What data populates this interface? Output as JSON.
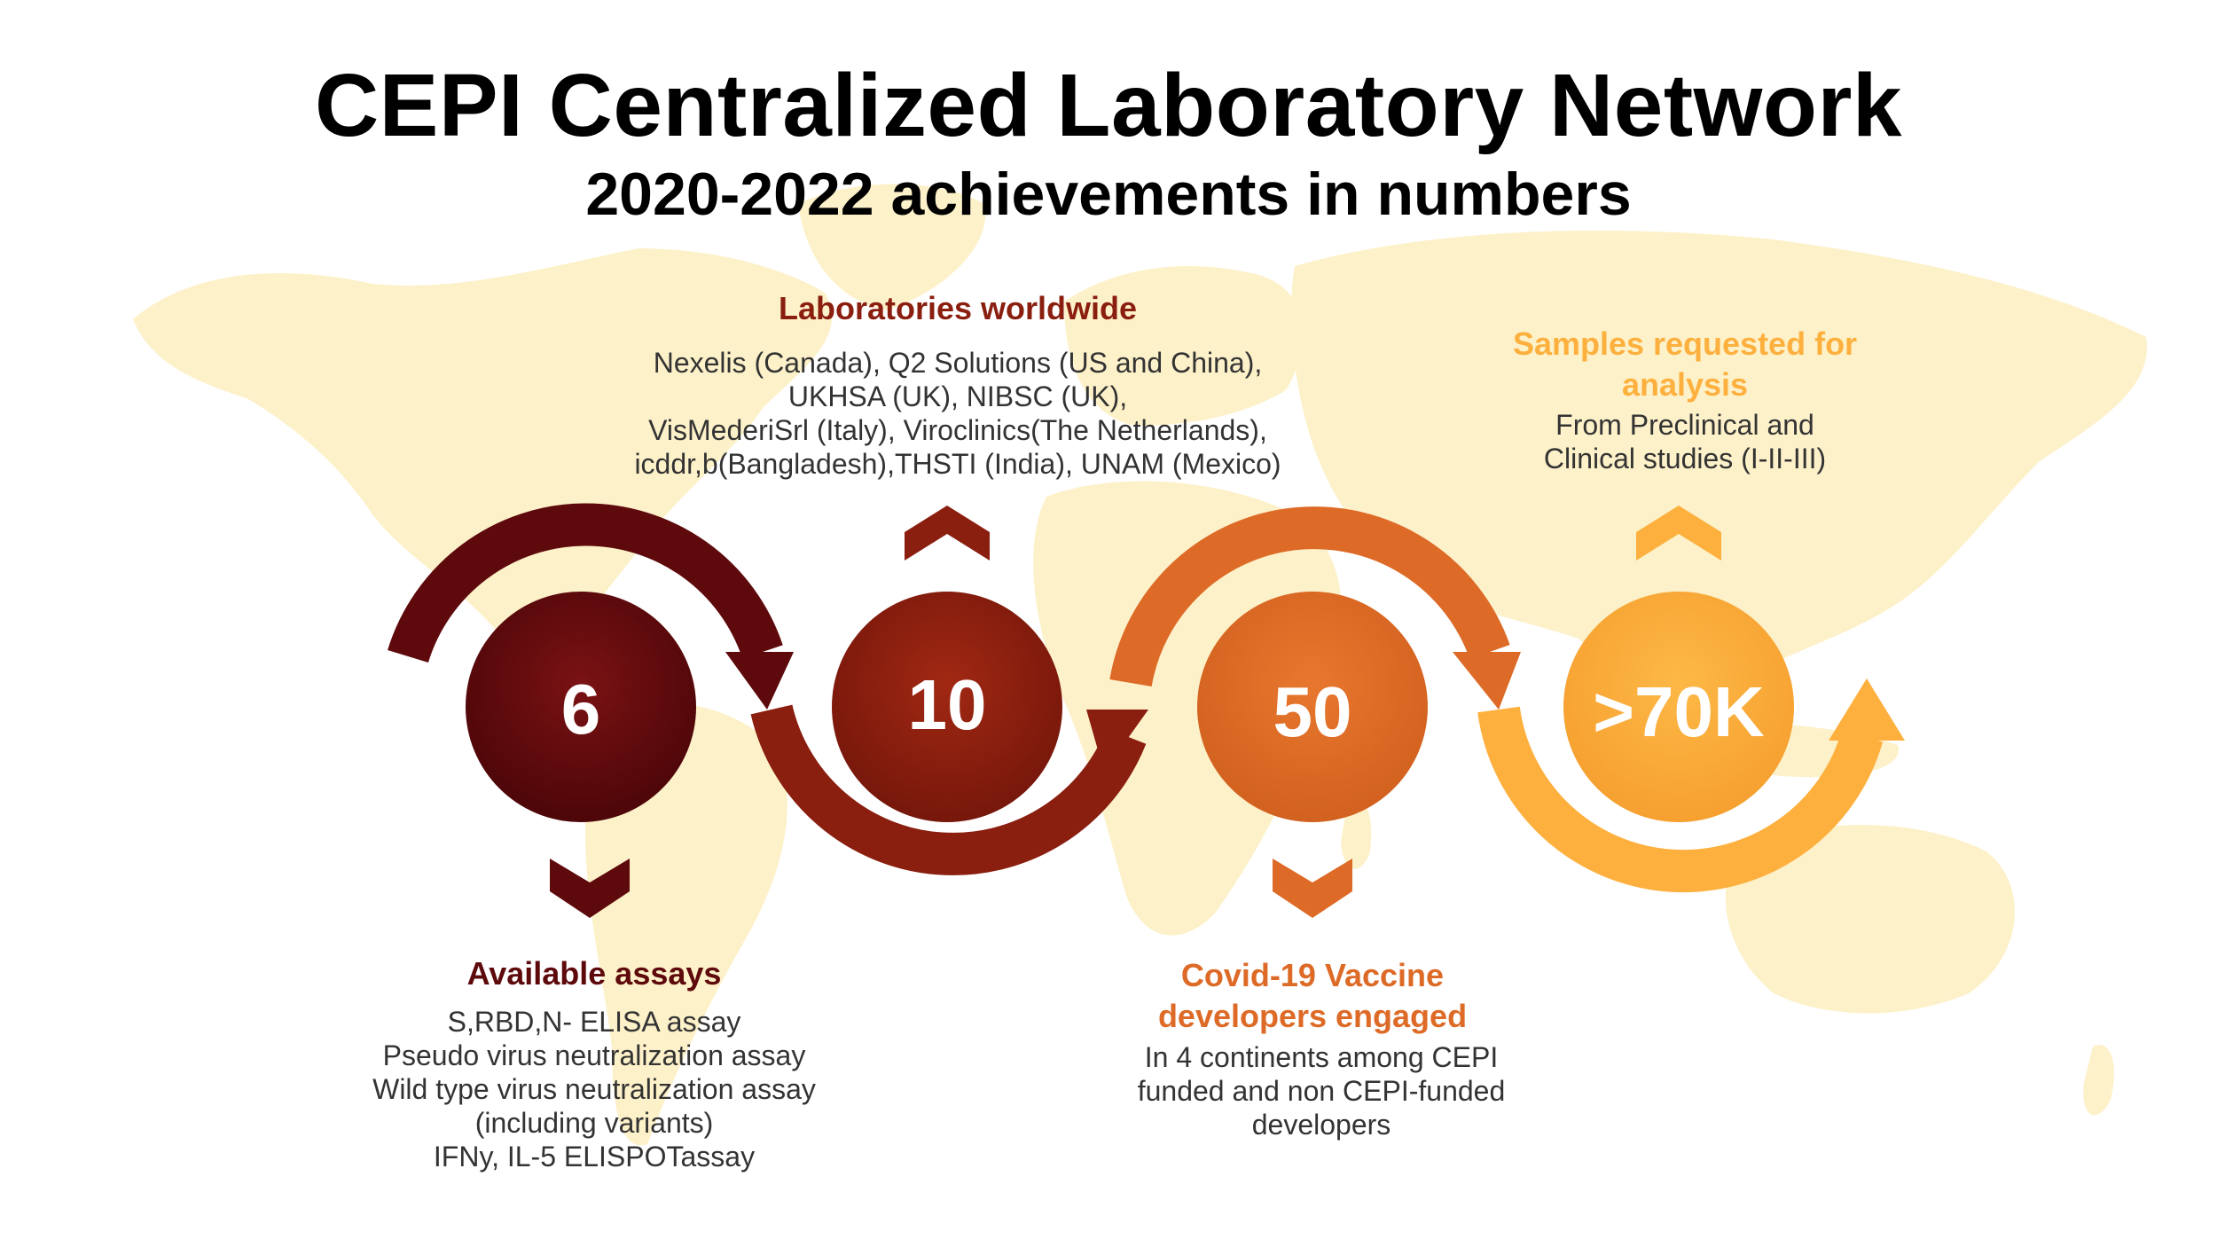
{
  "title": "CEPI Centralized Laboratory Network",
  "subtitle": "2020-2022 achievements in numbers",
  "colors": {
    "c1": "#5e0a0c",
    "c2": "#8a1e0f",
    "c3": "#dd6a26",
    "c4": "#fdb03e",
    "map": "#fdf1c9"
  },
  "stats": [
    {
      "value": "6",
      "label": "Available assays",
      "details": [
        "S,RBD,N- ELISA assay",
        "Pseudo virus neutralization assay",
        "Wild type virus neutralization assay",
        "(including variants)",
        "IFNy, IL-5 ELISPOTassay"
      ]
    },
    {
      "value": "10",
      "label": "Laboratories worldwide",
      "details": [
        "Nexelis (Canada), Q2 Solutions (US and China),",
        "UKHSA (UK), NIBSC (UK),",
        "VisMederiSrl (Italy), Viroclinics(The Netherlands),",
        "icddr,b(Bangladesh),THSTI (India), UNAM (Mexico)"
      ]
    },
    {
      "value": "50",
      "label_lines": [
        "Covid-19 Vaccine",
        "developers engaged"
      ],
      "details": [
        "In 4 continents among CEPI",
        "funded and non CEPI-funded",
        "developers"
      ]
    },
    {
      "value": ">70K",
      "label_lines": [
        "Samples requested for",
        "analysis"
      ],
      "details": [
        "From Preclinical and",
        "Clinical studies (I-II-III)"
      ]
    }
  ]
}
